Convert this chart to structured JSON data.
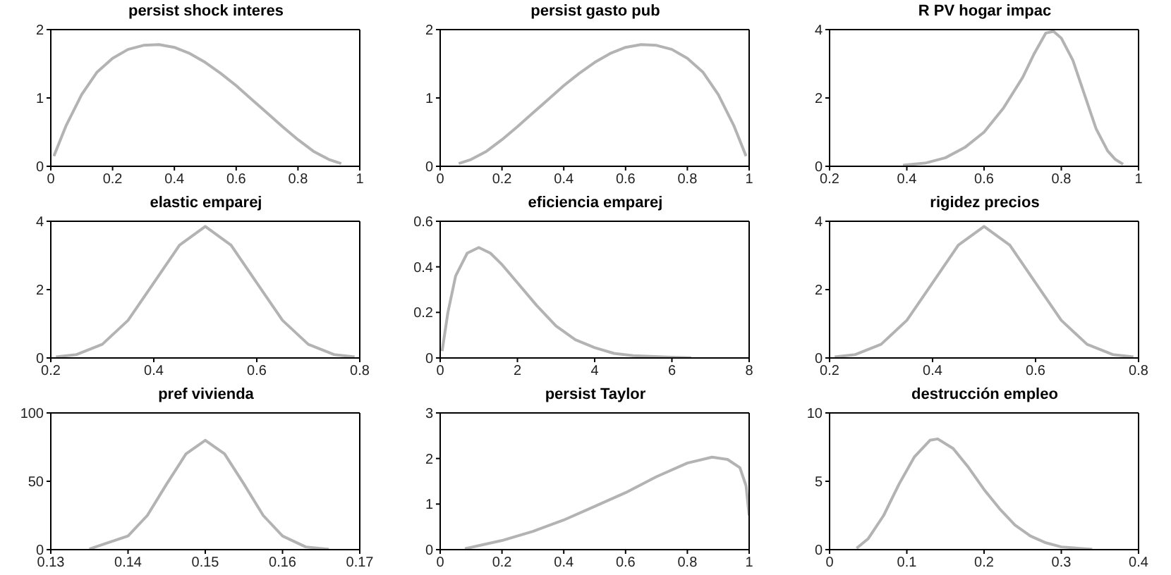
{
  "chart_data": [
    {
      "type": "line",
      "title": "persist shock interes",
      "marker": "none",
      "xlim": [
        0,
        1
      ],
      "xticks": [
        0,
        0.2,
        0.4,
        0.6,
        0.8,
        1
      ],
      "ylim": [
        0,
        2
      ],
      "yticks": [
        0,
        1,
        2
      ],
      "x": [
        0.01,
        0.05,
        0.1,
        0.15,
        0.2,
        0.25,
        0.3,
        0.35,
        0.4,
        0.45,
        0.5,
        0.55,
        0.6,
        0.65,
        0.7,
        0.75,
        0.8,
        0.85,
        0.9,
        0.94
      ],
      "series": [
        {
          "color": "#b3b3b3",
          "values": [
            0.15,
            0.6,
            1.05,
            1.38,
            1.58,
            1.71,
            1.77,
            1.78,
            1.74,
            1.65,
            1.52,
            1.36,
            1.18,
            0.98,
            0.78,
            0.58,
            0.39,
            0.22,
            0.1,
            0.04
          ]
        }
      ]
    },
    {
      "type": "line",
      "title": "persist gasto pub",
      "marker": "none",
      "xlim": [
        0,
        1
      ],
      "xticks": [
        0,
        0.2,
        0.4,
        0.6,
        0.8,
        1
      ],
      "ylim": [
        0,
        2
      ],
      "yticks": [
        0,
        1,
        2
      ],
      "x": [
        0.06,
        0.1,
        0.15,
        0.2,
        0.25,
        0.3,
        0.35,
        0.4,
        0.45,
        0.5,
        0.55,
        0.6,
        0.65,
        0.7,
        0.75,
        0.8,
        0.85,
        0.9,
        0.95,
        0.99
      ],
      "series": [
        {
          "color": "#b3b3b3",
          "values": [
            0.04,
            0.1,
            0.22,
            0.39,
            0.58,
            0.78,
            0.98,
            1.18,
            1.36,
            1.52,
            1.65,
            1.74,
            1.78,
            1.77,
            1.71,
            1.58,
            1.38,
            1.05,
            0.6,
            0.15
          ]
        }
      ]
    },
    {
      "type": "line",
      "title": "R PV hogar impac",
      "marker": "none",
      "xlim": [
        0.2,
        1
      ],
      "xticks": [
        0.2,
        0.4,
        0.6,
        0.8,
        1
      ],
      "ylim": [
        0,
        4
      ],
      "yticks": [
        0,
        2,
        4
      ],
      "x": [
        0.39,
        0.45,
        0.5,
        0.55,
        0.6,
        0.65,
        0.7,
        0.73,
        0.76,
        0.78,
        0.8,
        0.83,
        0.86,
        0.89,
        0.92,
        0.94,
        0.96
      ],
      "series": [
        {
          "color": "#b3b3b3",
          "values": [
            0.03,
            0.1,
            0.25,
            0.55,
            1.0,
            1.7,
            2.6,
            3.3,
            3.9,
            3.95,
            3.75,
            3.1,
            2.1,
            1.1,
            0.45,
            0.2,
            0.06
          ]
        }
      ]
    },
    {
      "type": "line",
      "title": "elastic emparej",
      "marker": "none",
      "xlim": [
        0.2,
        0.8
      ],
      "xticks": [
        0.2,
        0.4,
        0.6,
        0.8
      ],
      "ylim": [
        0,
        4
      ],
      "yticks": [
        0,
        2,
        4
      ],
      "x": [
        0.21,
        0.25,
        0.3,
        0.35,
        0.4,
        0.45,
        0.5,
        0.55,
        0.6,
        0.65,
        0.7,
        0.75,
        0.79
      ],
      "series": [
        {
          "color": "#b3b3b3",
          "values": [
            0.03,
            0.1,
            0.4,
            1.1,
            2.2,
            3.3,
            3.85,
            3.3,
            2.2,
            1.1,
            0.4,
            0.1,
            0.03
          ]
        }
      ]
    },
    {
      "type": "line",
      "title": "eficiencia emparej",
      "marker": "none",
      "xlim": [
        0,
        8
      ],
      "xticks": [
        0,
        2,
        4,
        6,
        8
      ],
      "ylim": [
        0,
        0.6
      ],
      "yticks": [
        0,
        0.2,
        0.4,
        0.6
      ],
      "x": [
        0.05,
        0.2,
        0.4,
        0.7,
        1,
        1.3,
        1.6,
        2,
        2.5,
        3,
        3.5,
        4,
        4.5,
        5,
        6,
        6.5
      ],
      "series": [
        {
          "color": "#b3b3b3",
          "values": [
            0.03,
            0.2,
            0.36,
            0.46,
            0.485,
            0.46,
            0.41,
            0.33,
            0.23,
            0.14,
            0.08,
            0.045,
            0.02,
            0.01,
            0.003,
            0.001
          ]
        }
      ]
    },
    {
      "type": "line",
      "title": "rigidez precios",
      "marker": "none",
      "xlim": [
        0.2,
        0.8
      ],
      "xticks": [
        0.2,
        0.4,
        0.6,
        0.8
      ],
      "ylim": [
        0,
        4
      ],
      "yticks": [
        0,
        2,
        4
      ],
      "x": [
        0.21,
        0.25,
        0.3,
        0.35,
        0.4,
        0.45,
        0.5,
        0.55,
        0.6,
        0.65,
        0.7,
        0.75,
        0.79
      ],
      "series": [
        {
          "color": "#b3b3b3",
          "values": [
            0.03,
            0.1,
            0.4,
            1.1,
            2.2,
            3.3,
            3.85,
            3.3,
            2.2,
            1.1,
            0.4,
            0.1,
            0.03
          ]
        }
      ]
    },
    {
      "type": "line",
      "title": "pref vivienda",
      "marker": "none",
      "xlim": [
        0.13,
        0.17
      ],
      "xticks": [
        0.13,
        0.14,
        0.15,
        0.16,
        0.17
      ],
      "ylim": [
        0,
        100
      ],
      "yticks": [
        0,
        50,
        100
      ],
      "x": [
        0.135,
        0.14,
        0.1425,
        0.145,
        0.1475,
        0.15,
        0.1525,
        0.155,
        0.1575,
        0.16,
        0.163,
        0.166
      ],
      "series": [
        {
          "color": "#b3b3b3",
          "values": [
            0.5,
            10,
            25,
            48,
            70,
            80,
            70,
            48,
            25,
            10,
            2,
            0.3
          ]
        }
      ]
    },
    {
      "type": "line",
      "title": "persist Taylor",
      "marker": "none",
      "xlim": [
        0,
        1
      ],
      "xticks": [
        0,
        0.2,
        0.4,
        0.6,
        0.8,
        1
      ],
      "ylim": [
        0,
        3
      ],
      "yticks": [
        0,
        1,
        2,
        3
      ],
      "x": [
        0.08,
        0.2,
        0.3,
        0.4,
        0.5,
        0.6,
        0.7,
        0.8,
        0.88,
        0.93,
        0.97,
        0.99,
        1.0
      ],
      "series": [
        {
          "color": "#b3b3b3",
          "values": [
            0.02,
            0.2,
            0.4,
            0.65,
            0.95,
            1.25,
            1.6,
            1.9,
            2.03,
            1.98,
            1.8,
            1.4,
            0.75
          ]
        }
      ]
    },
    {
      "type": "line",
      "title": "destrucción empleo",
      "marker": "none",
      "xlim": [
        0,
        0.4
      ],
      "xticks": [
        0,
        0.1,
        0.2,
        0.3,
        0.4
      ],
      "ylim": [
        0,
        10
      ],
      "yticks": [
        0,
        5,
        10
      ],
      "x": [
        0.035,
        0.05,
        0.07,
        0.09,
        0.11,
        0.13,
        0.14,
        0.16,
        0.18,
        0.2,
        0.22,
        0.24,
        0.26,
        0.28,
        0.3,
        0.34
      ],
      "series": [
        {
          "color": "#b3b3b3",
          "values": [
            0.1,
            0.8,
            2.5,
            4.8,
            6.8,
            8,
            8.1,
            7.4,
            6,
            4.4,
            3,
            1.8,
            1,
            0.5,
            0.2,
            0.02
          ]
        }
      ]
    }
  ]
}
